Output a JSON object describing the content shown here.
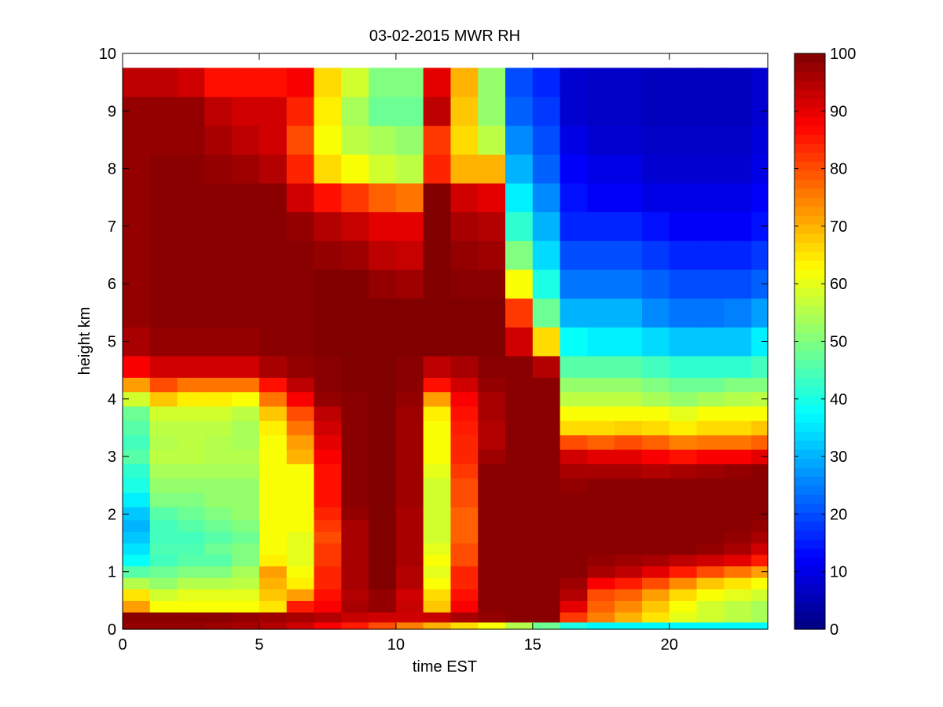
{
  "chart_data": {
    "type": "heatmap",
    "title": "03-02-2015 MWR RH",
    "xlabel": "time EST",
    "ylabel": "height km",
    "xlim": [
      0,
      23.6
    ],
    "ylim": [
      0,
      10
    ],
    "x_ticks": [
      "0",
      "5",
      "10",
      "15",
      "20"
    ],
    "y_ticks": [
      "0",
      "1",
      "2",
      "3",
      "4",
      "5",
      "6",
      "7",
      "8",
      "9",
      "10"
    ],
    "colorbar": {
      "min": 0,
      "max": 100,
      "colormap": "jet",
      "ticks": [
        "0",
        "10",
        "20",
        "30",
        "40",
        "50",
        "60",
        "70",
        "80",
        "90",
        "100"
      ]
    },
    "x": [
      0,
      1,
      2,
      3,
      4,
      5,
      6,
      7,
      8,
      9,
      10,
      11,
      12,
      13,
      14,
      15,
      16,
      17,
      18,
      19,
      20,
      21,
      22,
      23
    ],
    "y": [
      0.05,
      0.2,
      0.4,
      0.6,
      0.8,
      1.0,
      1.2,
      1.4,
      1.6,
      1.8,
      2.0,
      2.25,
      2.5,
      2.75,
      3.0,
      3.25,
      3.5,
      3.75,
      4.0,
      4.25,
      4.5,
      5.0,
      5.5,
      6.0,
      6.5,
      7.0,
      7.5,
      8.0,
      8.5,
      9.0,
      9.5
    ],
    "rh": [
      [
        98,
        98,
        98,
        97,
        96,
        95,
        92,
        88,
        85,
        80,
        75,
        70,
        66,
        62,
        55,
        48,
        40,
        37,
        37,
        37,
        37,
        37,
        37,
        37
      ],
      [
        99,
        99,
        99,
        99,
        98,
        97,
        96,
        95,
        93,
        92,
        92,
        93,
        96,
        98,
        99,
        99,
        82,
        75,
        70,
        65,
        60,
        58,
        56,
        54
      ],
      [
        72,
        62,
        62,
        62,
        62,
        65,
        85,
        88,
        96,
        98,
        93,
        68,
        88,
        99,
        99,
        99,
        90,
        78,
        74,
        68,
        62,
        58,
        56,
        54
      ],
      [
        65,
        58,
        60,
        60,
        60,
        68,
        72,
        86,
        95,
        98,
        92,
        66,
        86,
        99,
        99,
        99,
        95,
        80,
        78,
        72,
        66,
        62,
        60,
        58
      ],
      [
        55,
        52,
        55,
        55,
        56,
        70,
        64,
        84,
        96,
        100,
        95,
        62,
        84,
        99,
        99,
        99,
        97,
        88,
        85,
        80,
        74,
        68,
        65,
        62
      ],
      [
        46,
        48,
        50,
        50,
        54,
        72,
        62,
        84,
        96,
        100,
        95,
        60,
        84,
        99,
        99,
        99,
        99,
        96,
        94,
        90,
        85,
        80,
        76,
        72
      ],
      [
        38,
        44,
        46,
        46,
        50,
        64,
        60,
        82,
        96,
        100,
        96,
        62,
        80,
        99,
        99,
        99,
        99,
        98,
        97,
        96,
        94,
        92,
        90,
        85
      ],
      [
        35,
        45,
        45,
        48,
        50,
        62,
        60,
        82,
        96,
        100,
        96,
        60,
        80,
        99,
        99,
        99,
        99,
        99,
        99,
        99,
        99,
        98,
        96,
        92
      ],
      [
        32,
        44,
        44,
        46,
        48,
        62,
        60,
        80,
        96,
        100,
        96,
        58,
        78,
        99,
        99,
        99,
        99,
        99,
        99,
        99,
        99,
        99,
        98,
        96
      ],
      [
        30,
        44,
        46,
        48,
        50,
        62,
        62,
        82,
        96,
        100,
        96,
        58,
        78,
        99,
        99,
        99,
        99,
        99,
        99,
        99,
        99,
        99,
        99,
        98
      ],
      [
        32,
        46,
        48,
        50,
        52,
        62,
        62,
        84,
        98,
        100,
        96,
        58,
        78,
        99,
        99,
        99,
        99,
        99,
        99,
        99,
        99,
        99,
        99,
        99
      ],
      [
        36,
        50,
        50,
        52,
        52,
        62,
        62,
        86,
        99,
        100,
        97,
        58,
        80,
        99,
        99,
        99,
        99,
        99,
        99,
        99,
        99,
        99,
        99,
        99
      ],
      [
        40,
        52,
        52,
        52,
        52,
        62,
        62,
        86,
        99,
        100,
        97,
        58,
        80,
        99,
        99,
        99,
        98,
        99,
        99,
        99,
        99,
        99,
        99,
        99
      ],
      [
        42,
        54,
        54,
        54,
        54,
        62,
        62,
        86,
        99,
        100,
        97,
        60,
        82,
        99,
        99,
        99,
        96,
        96,
        96,
        95,
        96,
        97,
        98,
        99
      ],
      [
        46,
        56,
        56,
        55,
        55,
        62,
        70,
        88,
        99,
        100,
        97,
        62,
        84,
        97,
        99,
        99,
        92,
        90,
        90,
        88,
        86,
        88,
        88,
        90
      ],
      [
        44,
        55,
        56,
        55,
        54,
        62,
        72,
        90,
        99,
        100,
        97,
        62,
        84,
        95,
        99,
        99,
        80,
        78,
        80,
        78,
        75,
        76,
        76,
        78
      ],
      [
        46,
        56,
        56,
        56,
        54,
        64,
        76,
        92,
        99,
        100,
        97,
        62,
        85,
        95,
        99,
        99,
        66,
        66,
        67,
        66,
        64,
        66,
        66,
        68
      ],
      [
        48,
        58,
        58,
        58,
        56,
        68,
        80,
        94,
        99,
        100,
        97,
        64,
        86,
        96,
        99,
        99,
        62,
        62,
        62,
        62,
        60,
        62,
        62,
        62
      ],
      [
        58,
        68,
        64,
        64,
        62,
        76,
        88,
        98,
        99,
        100,
        98,
        72,
        88,
        96,
        99,
        99,
        56,
        56,
        56,
        54,
        52,
        54,
        55,
        56
      ],
      [
        72,
        80,
        76,
        76,
        76,
        86,
        94,
        99,
        100,
        100,
        99,
        86,
        92,
        98,
        99,
        99,
        52,
        52,
        52,
        50,
        48,
        48,
        50,
        50
      ],
      [
        88,
        92,
        92,
        92,
        92,
        96,
        98,
        99,
        100,
        100,
        99,
        94,
        96,
        99,
        99,
        95,
        46,
        46,
        46,
        44,
        42,
        42,
        42,
        44
      ],
      [
        96,
        98,
        98,
        98,
        98,
        99,
        99,
        100,
        100,
        100,
        100,
        100,
        100,
        100,
        92,
        66,
        38,
        36,
        36,
        34,
        32,
        32,
        32,
        36
      ],
      [
        98,
        99,
        99,
        99,
        99,
        99,
        99,
        100,
        100,
        100,
        100,
        100,
        100,
        100,
        82,
        48,
        30,
        30,
        30,
        26,
        24,
        24,
        25,
        28
      ],
      [
        98,
        99,
        99,
        99,
        99,
        99,
        99,
        100,
        100,
        98,
        97,
        100,
        99,
        99,
        62,
        40,
        24,
        24,
        24,
        22,
        20,
        20,
        20,
        22
      ],
      [
        98,
        99,
        99,
        99,
        99,
        99,
        99,
        98,
        97,
        94,
        93,
        100,
        98,
        97,
        50,
        34,
        20,
        20,
        20,
        18,
        16,
        16,
        16,
        18
      ],
      [
        98,
        99,
        99,
        99,
        99,
        99,
        98,
        95,
        93,
        90,
        90,
        100,
        96,
        95,
        42,
        30,
        16,
        16,
        16,
        14,
        12,
        12,
        12,
        14
      ],
      [
        98,
        99,
        99,
        99,
        99,
        99,
        92,
        86,
        82,
        78,
        76,
        100,
        92,
        90,
        36,
        26,
        14,
        12,
        12,
        10,
        10,
        10,
        10,
        12
      ],
      [
        98,
        99,
        99,
        98,
        97,
        95,
        84,
        66,
        62,
        58,
        56,
        84,
        70,
        70,
        30,
        22,
        12,
        10,
        10,
        8,
        8,
        8,
        8,
        10
      ],
      [
        98,
        98,
        98,
        96,
        94,
        92,
        80,
        62,
        56,
        54,
        52,
        82,
        66,
        56,
        26,
        20,
        10,
        8,
        8,
        7,
        7,
        7,
        7,
        9
      ],
      [
        98,
        98,
        98,
        94,
        92,
        92,
        84,
        64,
        54,
        48,
        48,
        94,
        68,
        52,
        22,
        18,
        8,
        7,
        7,
        6,
        6,
        6,
        6,
        8
      ],
      [
        94,
        94,
        92,
        86,
        86,
        86,
        88,
        66,
        58,
        50,
        50,
        90,
        70,
        52,
        20,
        16,
        8,
        7,
        7,
        6,
        6,
        6,
        6,
        8
      ]
    ]
  }
}
